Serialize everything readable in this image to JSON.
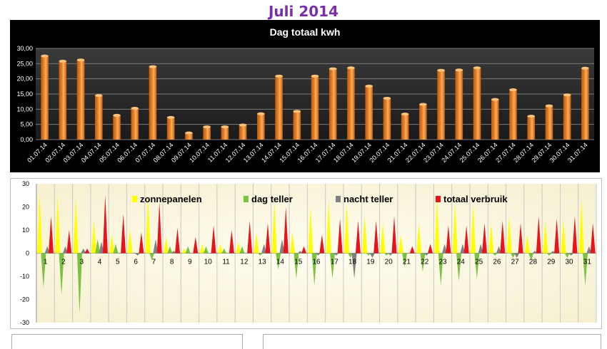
{
  "page": {
    "title": "Juli 2014"
  },
  "chart_data": [
    {
      "type": "bar",
      "title": "Dag totaal kwh",
      "xlabel": "",
      "ylabel": "",
      "ylim": [
        0,
        30
      ],
      "yticks": [
        "0,00",
        "5,00",
        "10,00",
        "15,00",
        "20,00",
        "25,00",
        "30,00"
      ],
      "grid": true,
      "background": "#000000",
      "bar_color": "#f0882a",
      "categories": [
        "01.07.14",
        "02.07.14",
        "03.07.14",
        "04.07.14",
        "05.07.14",
        "06.07.14",
        "07.07.14",
        "08.07.14",
        "09.07.14",
        "10.07.14",
        "11.07.14",
        "12.07.14",
        "13.07.14",
        "14.07.14",
        "15.07.14",
        "16.07.14",
        "17.07.14",
        "18.07.14",
        "19.07.14",
        "20.07.14",
        "21.07.14",
        "22.07.14",
        "23.07.14",
        "24.07.14",
        "25.07.14",
        "26.07.14",
        "27.07.14",
        "28.07.14",
        "29.07.14",
        "30.07.14",
        "31.07.14"
      ],
      "values": [
        27.5,
        25.8,
        26.2,
        14.5,
        8.0,
        10.3,
        24.0,
        7.3,
        2.2,
        4.2,
        4.2,
        4.8,
        8.5,
        20.9,
        9.3,
        20.9,
        23.3,
        23.6,
        17.6,
        13.6,
        8.4,
        11.6,
        22.8,
        22.9,
        23.6,
        13.2,
        16.4,
        7.7,
        11.1,
        14.7,
        23.5
      ]
    },
    {
      "type": "bar",
      "ylim": [
        -30,
        30
      ],
      "yticks": [
        "-30",
        "-20",
        "-10",
        "0",
        "10",
        "20",
        "30"
      ],
      "categories": [
        "1",
        "2",
        "3",
        "4",
        "5",
        "6",
        "7",
        "8",
        "9",
        "10",
        "11",
        "12",
        "13",
        "14",
        "15",
        "16",
        "17",
        "18",
        "19",
        "20",
        "21",
        "22",
        "23",
        "24",
        "25",
        "26",
        "27",
        "28",
        "29",
        "30",
        "31"
      ],
      "legend_position": "top",
      "series": [
        {
          "name": "zonnepanelen",
          "color": "#ffff00",
          "values": [
            26,
            25,
            24,
            14,
            8,
            10,
            25,
            7,
            2,
            4,
            4,
            5,
            9,
            22,
            9,
            20,
            23,
            22,
            16,
            13,
            8,
            13,
            24,
            22,
            21,
            13,
            16,
            8,
            14,
            14,
            23
          ]
        },
        {
          "name": "dag teller",
          "color": "#7bc142",
          "values": [
            -15,
            -18,
            -26,
            6,
            4,
            0,
            -3,
            3,
            3,
            3,
            2,
            3,
            -1,
            -7,
            -11,
            -14,
            -11,
            -2,
            -1,
            -1,
            -6,
            -8,
            -14,
            -12,
            -11,
            -1,
            -2,
            -3,
            -1,
            -2,
            -14
          ]
        },
        {
          "name": "nacht teller",
          "color": "#808080",
          "values": [
            3,
            3,
            2,
            5,
            0,
            -1,
            6,
            1,
            0,
            0,
            0,
            0,
            4,
            6,
            1,
            -1,
            -1,
            -11,
            -2,
            -1,
            0,
            -1,
            4,
            4,
            4,
            3,
            -2,
            1,
            1,
            -1,
            3
          ]
        },
        {
          "name": "totaal verbruik",
          "color": "#e8141c",
          "values": [
            16,
            10,
            2,
            25,
            17,
            9,
            22,
            11,
            7,
            12,
            10,
            14,
            13,
            20,
            3,
            8,
            15,
            14,
            14,
            16,
            3,
            4,
            12,
            12,
            13,
            14,
            13,
            16,
            15,
            16,
            13
          ]
        }
      ]
    }
  ]
}
